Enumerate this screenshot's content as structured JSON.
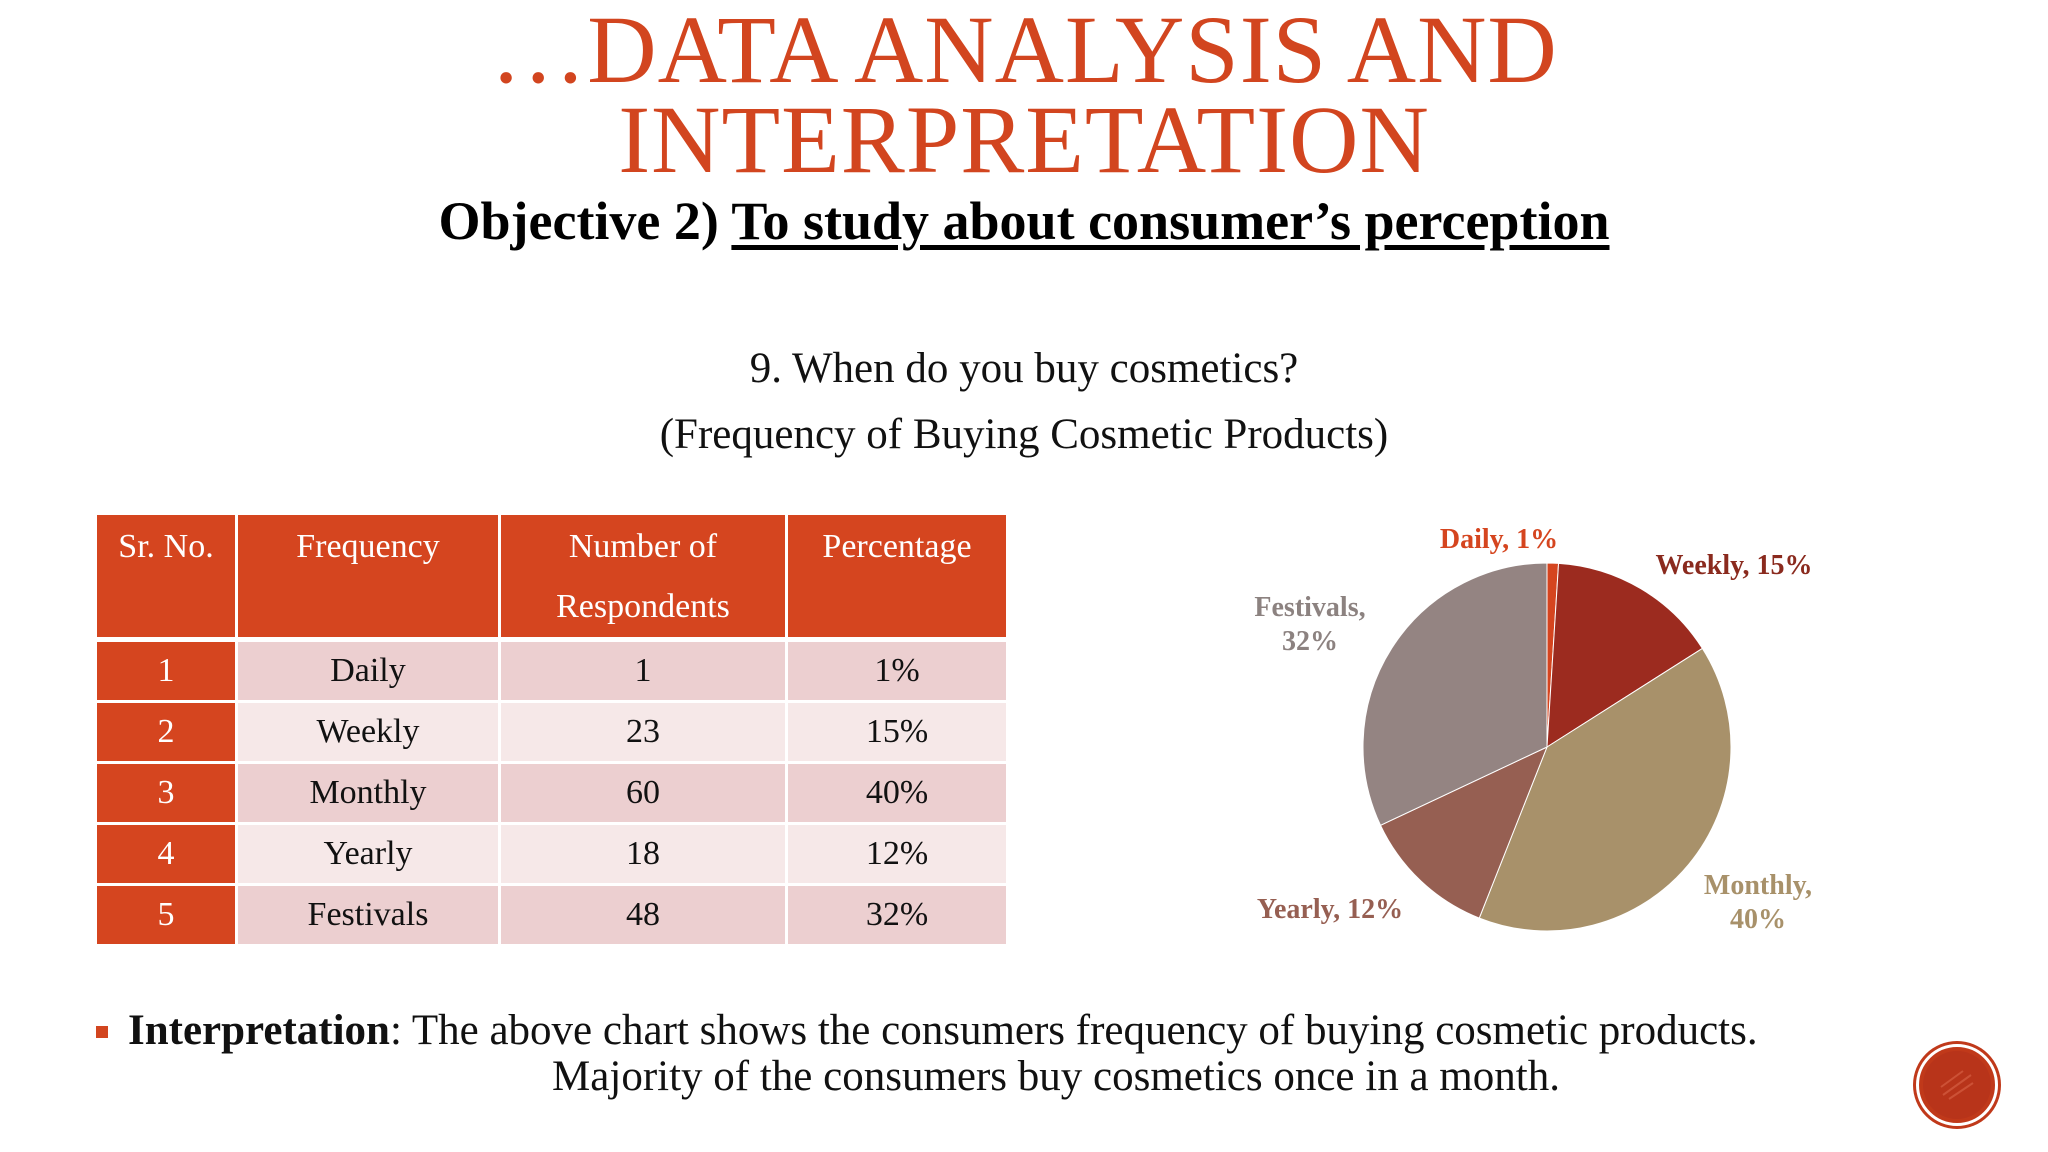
{
  "title": {
    "line1": "…DATA ANALYSIS AND",
    "line2": "INTERPRETATION"
  },
  "objective": {
    "prefix": "Objective 2) ",
    "underlined": "To study about consumer’s perception"
  },
  "question": {
    "line1": "9. When do you buy cosmetics?",
    "line2": "(Frequency of Buying Cosmetic Products)"
  },
  "table": {
    "headers": [
      "Sr. No.",
      "Frequency",
      "Number of Respondents",
      "Percentage"
    ],
    "header_lines": {
      "respondents_1": "Number of",
      "respondents_2": "Respondents"
    },
    "rows": [
      {
        "sr": "1",
        "frequency": "Daily",
        "respondents": "1",
        "percentage": "1%"
      },
      {
        "sr": "2",
        "frequency": "Weekly",
        "respondents": "23",
        "percentage": "15%"
      },
      {
        "sr": "3",
        "frequency": "Monthly",
        "respondents": "60",
        "percentage": "40%"
      },
      {
        "sr": "4",
        "frequency": "Yearly",
        "respondents": "18",
        "percentage": "12%"
      },
      {
        "sr": "5",
        "frequency": "Festivals",
        "respondents": "48",
        "percentage": "32%"
      }
    ]
  },
  "chart_data": {
    "type": "pie",
    "slices": [
      {
        "label": "Daily",
        "value": 1,
        "display": "Daily, 1%",
        "color": "#d5451f"
      },
      {
        "label": "Weekly",
        "value": 15,
        "display": "Weekly, 15%",
        "color": "#9c2b1f"
      },
      {
        "label": "Monthly",
        "value": 40,
        "display_1": "Monthly,",
        "display_2": "40%",
        "color": "#a8916a"
      },
      {
        "label": "Yearly",
        "value": 12,
        "display": "Yearly, 12%",
        "color": "#965f52"
      },
      {
        "label": "Festivals",
        "value": 32,
        "display_1": "Festivals,",
        "display_2": "32%",
        "color": "#948482"
      }
    ],
    "label_colors": {
      "Daily": "#d5451f",
      "Weekly": "#8a2a1e",
      "Monthly": "#a8916a",
      "Yearly": "#965f52",
      "Festivals": "#8c8280"
    }
  },
  "interpretation": {
    "label": "Interpretation",
    "text1": ": The above chart shows the consumers frequency of buying cosmetic products.",
    "text2": "Majority of the consumers buy cosmetics once in a month."
  },
  "accent_color": "#d2451f"
}
